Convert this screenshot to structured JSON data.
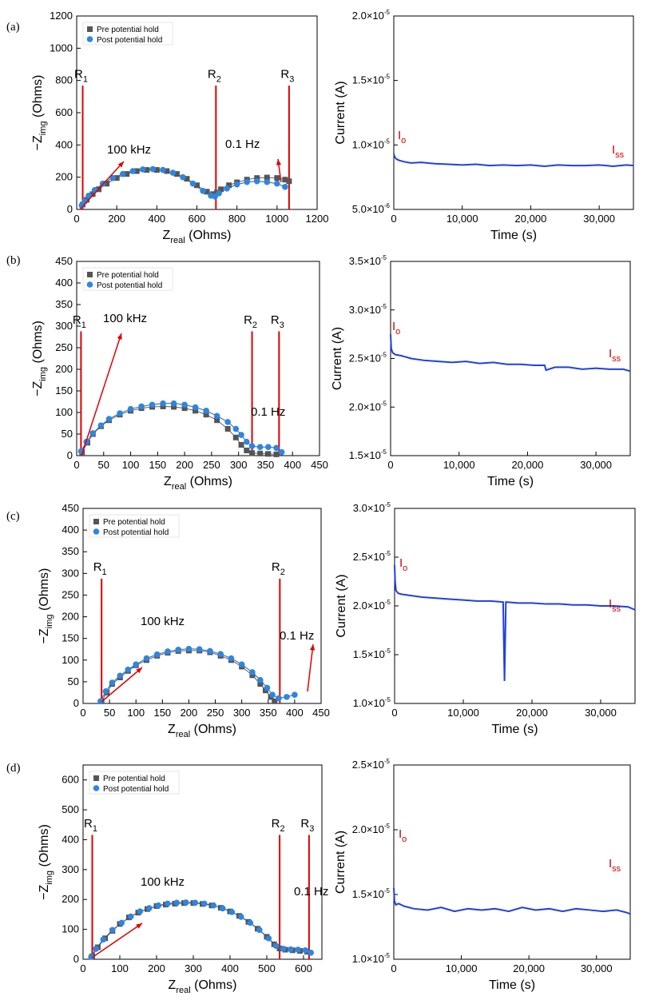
{
  "chart_data": [
    {
      "type": "scatter",
      "panel": "(a)",
      "xlabel": "Z",
      "xlabel_sub": "real",
      "xlabel_suffix": " (Ohms)",
      "ylabel_prefix": "−Z",
      "ylabel_sub": "img",
      "ylabel_suffix": " (Ohms)",
      "xlim": [
        0,
        1200
      ],
      "ylim": [
        0,
        1200
      ],
      "xticks": [
        0,
        200,
        400,
        600,
        800,
        1000,
        1200
      ],
      "yticks": [
        0,
        200,
        400,
        600,
        800,
        1000,
        1200
      ],
      "legend": [
        "Pre potential hold",
        "Post potential hold"
      ],
      "series": [
        {
          "name": "Pre potential hold",
          "color": "#555555",
          "marker": "square",
          "x": [
            30,
            50,
            80,
            110,
            150,
            200,
            250,
            300,
            350,
            400,
            450,
            500,
            550,
            600,
            650,
            680,
            700,
            720,
            760,
            800,
            850,
            900,
            950,
            1000,
            1040,
            1060
          ],
          "y": [
            30,
            60,
            95,
            125,
            160,
            195,
            220,
            238,
            245,
            245,
            238,
            220,
            190,
            150,
            110,
            95,
            105,
            125,
            150,
            168,
            185,
            195,
            198,
            195,
            185,
            175
          ]
        },
        {
          "name": "Post potential hold",
          "color": "#2e86de",
          "marker": "circle",
          "x": [
            25,
            40,
            60,
            90,
            130,
            180,
            230,
            280,
            330,
            380,
            430,
            480,
            530,
            580,
            630,
            670,
            690,
            710,
            750,
            800,
            850,
            900,
            950,
            1000,
            1040
          ],
          "y": [
            25,
            50,
            85,
            120,
            160,
            195,
            220,
            238,
            248,
            250,
            245,
            228,
            200,
            160,
            115,
            85,
            80,
            100,
            130,
            155,
            170,
            175,
            170,
            160,
            140
          ]
        }
      ],
      "vlines": [
        {
          "label": "R",
          "sub": "1",
          "x": 30
        },
        {
          "label": "R",
          "sub": "2",
          "x": 695
        },
        {
          "label": "R",
          "sub": "3",
          "x": 1060
        }
      ],
      "annotations": [
        {
          "text": "100 kHz"
        },
        {
          "text": "0.1 Hz"
        }
      ]
    },
    {
      "type": "line",
      "panel": "(a)",
      "xlabel": "Time (s)",
      "ylabel": "Current (A)",
      "xlim": [
        0,
        35000
      ],
      "ylim": [
        5e-06,
        2e-05
      ],
      "xticks": [
        0,
        10000,
        20000,
        30000
      ],
      "xtick_labels": [
        "0",
        "10,000",
        "20,000",
        "30,000"
      ],
      "ytick_mant": [
        "5.0",
        "1.0",
        "1.5",
        "2.0"
      ],
      "ytick_exp": [
        "-6",
        "-5",
        "-5",
        "-5"
      ],
      "ytick_values": [
        5e-06,
        1e-05,
        1.5e-05,
        2e-05
      ],
      "color": "#1f3fe6",
      "x": [
        0,
        150,
        400,
        800,
        1500,
        2500,
        4000,
        6000,
        8000,
        10000,
        12000,
        14000,
        16000,
        18000,
        20000,
        22000,
        24000,
        26000,
        28000,
        30000,
        32000,
        34000,
        35000
      ],
      "y": [
        9.3e-06,
        9.05e-06,
        8.9e-06,
        8.8e-06,
        8.7e-06,
        8.6e-06,
        8.65e-06,
        8.55e-06,
        8.5e-06,
        8.45e-06,
        8.5e-06,
        8.4e-06,
        8.45e-06,
        8.4e-06,
        8.45e-06,
        8.35e-06,
        8.45e-06,
        8.4e-06,
        8.4e-06,
        8.45e-06,
        8.35e-06,
        8.45e-06,
        8.4e-06
      ],
      "labels": [
        {
          "text": "I",
          "sub": "o"
        },
        {
          "text": "I",
          "sub": "ss"
        }
      ]
    },
    {
      "type": "scatter",
      "panel": "(b)",
      "xlabel": "Z",
      "xlabel_sub": "real",
      "xlabel_suffix": " (Ohms)",
      "ylabel_prefix": "−Z",
      "ylabel_sub": "img",
      "ylabel_suffix": " (Ohms)",
      "xlim": [
        0,
        450
      ],
      "ylim": [
        0,
        450
      ],
      "xticks": [
        0,
        50,
        100,
        150,
        200,
        250,
        300,
        350,
        400,
        450
      ],
      "yticks": [
        0,
        50,
        100,
        150,
        200,
        250,
        300,
        350,
        400,
        450
      ],
      "legend": [
        "Pre potential hold",
        "Post potential hold"
      ],
      "series": [
        {
          "name": "Pre potential hold",
          "color": "#555555",
          "marker": "square",
          "x": [
            10,
            20,
            30,
            45,
            60,
            80,
            100,
            120,
            140,
            160,
            180,
            200,
            220,
            240,
            260,
            280,
            295,
            305,
            315,
            325,
            340,
            355,
            370
          ],
          "y": [
            8,
            30,
            50,
            68,
            82,
            95,
            104,
            110,
            113,
            114,
            113,
            110,
            104,
            95,
            82,
            62,
            42,
            25,
            12,
            6,
            5,
            4,
            3
          ]
        },
        {
          "name": "Post potential hold",
          "color": "#2e86de",
          "marker": "circle",
          "x": [
            8,
            18,
            30,
            45,
            60,
            80,
            100,
            120,
            140,
            160,
            180,
            200,
            220,
            240,
            260,
            280,
            295,
            305,
            315,
            325,
            340,
            355,
            370,
            380
          ],
          "y": [
            10,
            32,
            52,
            70,
            85,
            98,
            108,
            114,
            118,
            121,
            121,
            118,
            112,
            104,
            92,
            78,
            62,
            48,
            32,
            22,
            20,
            20,
            18,
            8
          ]
        }
      ],
      "vlines": [
        {
          "label": "R",
          "sub": "1",
          "x": 8
        },
        {
          "label": "R",
          "sub": "2",
          "x": 325
        },
        {
          "label": "R",
          "sub": "3",
          "x": 375
        }
      ],
      "annotations": [
        {
          "text": "100 kHz"
        },
        {
          "text": "0.1 Hz"
        }
      ]
    },
    {
      "type": "line",
      "panel": "(b)",
      "xlabel": "Time (s)",
      "ylabel": "Current (A)",
      "xlim": [
        0,
        35000
      ],
      "ylim": [
        1.5e-05,
        3.5e-05
      ],
      "xticks": [
        0,
        10000,
        20000,
        30000
      ],
      "xtick_labels": [
        "0",
        "10,000",
        "20,000",
        "30,000"
      ],
      "ytick_mant": [
        "1.5",
        "2.0",
        "2.5",
        "3.0",
        "3.5"
      ],
      "ytick_exp": [
        "-5",
        "-5",
        "-5",
        "-5",
        "-5"
      ],
      "ytick_values": [
        1.5e-05,
        2e-05,
        2.5e-05,
        3e-05,
        3.5e-05
      ],
      "color": "#1f3fe6",
      "x": [
        0,
        100,
        300,
        700,
        1500,
        3000,
        5000,
        7000,
        9000,
        11000,
        13000,
        15000,
        17000,
        19000,
        21000,
        22500,
        22700,
        24000,
        26000,
        28000,
        30000,
        32000,
        34000,
        35000
      ],
      "y": [
        2.75e-05,
        2.6e-05,
        2.56e-05,
        2.54e-05,
        2.53e-05,
        2.5e-05,
        2.48e-05,
        2.47e-05,
        2.46e-05,
        2.47e-05,
        2.45e-05,
        2.46e-05,
        2.44e-05,
        2.44e-05,
        2.43e-05,
        2.43e-05,
        2.38e-05,
        2.41e-05,
        2.41e-05,
        2.39e-05,
        2.4e-05,
        2.39e-05,
        2.39e-05,
        2.37e-05
      ],
      "labels": [
        {
          "text": "I",
          "sub": "o"
        },
        {
          "text": "I",
          "sub": "ss"
        }
      ]
    },
    {
      "type": "scatter",
      "panel": "(c)",
      "xlabel": "Z",
      "xlabel_sub": "real",
      "xlabel_suffix": " (Ohms)",
      "ylabel_prefix": "−Z",
      "ylabel_sub": "img",
      "ylabel_suffix": " (Ohms)",
      "xlim": [
        0,
        450
      ],
      "ylim": [
        0,
        450
      ],
      "xticks": [
        0,
        50,
        100,
        150,
        200,
        250,
        300,
        350,
        400,
        450
      ],
      "yticks": [
        0,
        50,
        100,
        150,
        200,
        250,
        300,
        350,
        400,
        450
      ],
      "legend": [
        "Pre potential hold",
        "Post potential hold"
      ],
      "series": [
        {
          "name": "Pre potential hold",
          "color": "#555555",
          "marker": "square",
          "x": [
            35,
            45,
            55,
            70,
            85,
            100,
            120,
            140,
            160,
            180,
            200,
            220,
            240,
            260,
            280,
            300,
            320,
            335,
            345,
            355,
            362
          ],
          "y": [
            5,
            25,
            45,
            60,
            75,
            88,
            100,
            110,
            117,
            121,
            122,
            122,
            118,
            110,
            100,
            85,
            65,
            45,
            30,
            15,
            5
          ]
        },
        {
          "name": "Post potential hold",
          "color": "#2e86de",
          "marker": "circle",
          "x": [
            33,
            43,
            55,
            70,
            85,
            100,
            120,
            140,
            160,
            180,
            200,
            220,
            240,
            260,
            280,
            300,
            320,
            335,
            348,
            358,
            370,
            385,
            400
          ],
          "y": [
            5,
            28,
            48,
            64,
            78,
            90,
            104,
            113,
            120,
            124,
            126,
            125,
            121,
            114,
            104,
            90,
            72,
            54,
            36,
            20,
            12,
            15,
            20
          ]
        }
      ],
      "vlines": [
        {
          "label": "R",
          "sub": "1",
          "x": 35
        },
        {
          "label": "R",
          "sub": "2",
          "x": 372
        }
      ],
      "annotations": [
        {
          "text": "100 kHz"
        },
        {
          "text": "0.1 Hz"
        }
      ]
    },
    {
      "type": "line",
      "panel": "(c)",
      "xlabel": "Time (s)",
      "ylabel": "Current (A)",
      "xlim": [
        0,
        35000
      ],
      "ylim": [
        1e-05,
        3e-05
      ],
      "xticks": [
        0,
        10000,
        20000,
        30000
      ],
      "xtick_labels": [
        "0",
        "10,000",
        "20,000",
        "30,000"
      ],
      "ytick_mant": [
        "1.0",
        "1.5",
        "2.0",
        "2.5",
        "3.0"
      ],
      "ytick_exp": [
        "-5",
        "-5",
        "-5",
        "-5",
        "-5"
      ],
      "ytick_values": [
        1e-05,
        1.5e-05,
        2e-05,
        2.5e-05,
        3e-05
      ],
      "color": "#1f3fe6",
      "x": [
        0,
        80,
        200,
        500,
        1000,
        2000,
        4000,
        6000,
        8000,
        10000,
        12000,
        14000,
        15800,
        16000,
        16200,
        18000,
        20000,
        22000,
        24000,
        26000,
        28000,
        30000,
        32000,
        34000,
        35000
      ],
      "y": [
        2.42e-05,
        2.25e-05,
        2.16e-05,
        2.13e-05,
        2.12e-05,
        2.11e-05,
        2.09e-05,
        2.08e-05,
        2.07e-05,
        2.06e-05,
        2.05e-05,
        2.05e-05,
        2.04e-05,
        1.23e-05,
        2.04e-05,
        2.03e-05,
        2.03e-05,
        2.02e-05,
        2.02e-05,
        2.01e-05,
        2.01e-05,
        2e-05,
        2e-05,
        1.99e-05,
        1.96e-05
      ],
      "labels": [
        {
          "text": "I",
          "sub": "o"
        },
        {
          "text": "I",
          "sub": "ss"
        }
      ]
    },
    {
      "type": "scatter",
      "panel": "(d)",
      "xlabel": "Z",
      "xlabel_sub": "real",
      "xlabel_suffix": " (Ohms)",
      "ylabel_prefix": "−Z",
      "ylabel_sub": "img",
      "ylabel_suffix": " (Ohms)",
      "xlim": [
        0,
        650
      ],
      "ylim": [
        0,
        650
      ],
      "xticks": [
        0,
        100,
        200,
        300,
        400,
        500,
        600
      ],
      "yticks": [
        0,
        100,
        200,
        300,
        400,
        500,
        600
      ],
      "legend": [
        "Pre potential hold",
        "Post potential hold"
      ],
      "series": [
        {
          "name": "Pre potential hold",
          "color": "#555555",
          "marker": "square",
          "x": [
            25,
            40,
            60,
            80,
            100,
            125,
            150,
            175,
            200,
            225,
            250,
            275,
            300,
            325,
            350,
            375,
            400,
            425,
            450,
            475,
            500,
            520,
            535,
            550,
            570,
            590,
            610
          ],
          "y": [
            10,
            40,
            70,
            95,
            118,
            140,
            156,
            168,
            178,
            183,
            186,
            188,
            188,
            185,
            180,
            172,
            160,
            145,
            125,
            102,
            75,
            50,
            36,
            32,
            30,
            28,
            25
          ]
        },
        {
          "name": "Post potential hold",
          "color": "#2e86de",
          "marker": "circle",
          "x": [
            22,
            35,
            55,
            80,
            105,
            130,
            155,
            180,
            205,
            230,
            255,
            280,
            305,
            330,
            355,
            380,
            405,
            430,
            455,
            480,
            505,
            525,
            545,
            565,
            585,
            605,
            620
          ],
          "y": [
            8,
            35,
            66,
            98,
            122,
            143,
            160,
            171,
            180,
            186,
            189,
            190,
            189,
            186,
            180,
            170,
            158,
            142,
            122,
            98,
            70,
            45,
            35,
            33,
            32,
            30,
            22
          ]
        }
      ],
      "vlines": [
        {
          "label": "R",
          "sub": "1",
          "x": 25
        },
        {
          "label": "R",
          "sub": "2",
          "x": 535
        },
        {
          "label": "R",
          "sub": "3",
          "x": 615
        }
      ],
      "annotations": [
        {
          "text": "100 kHz"
        },
        {
          "text": "0.1 Hz"
        }
      ]
    },
    {
      "type": "line",
      "panel": "(d)",
      "xlabel": "Time (s)",
      "ylabel": "Current (A)",
      "xlim": [
        0,
        35000
      ],
      "ylim": [
        1e-05,
        2.5e-05
      ],
      "xticks": [
        0,
        10000,
        20000,
        30000
      ],
      "xtick_labels": [
        "0",
        "10,000",
        "20,000",
        "30,000"
      ],
      "ytick_mant": [
        "1.0",
        "1.5",
        "2.0",
        "2.5"
      ],
      "ytick_exp": [
        "-5",
        "-5",
        "-5",
        "-5"
      ],
      "ytick_values": [
        1e-05,
        1.5e-05,
        2e-05,
        2.5e-05
      ],
      "color": "#1f3fe6",
      "x": [
        0,
        100,
        300,
        700,
        1500,
        3000,
        5000,
        7000,
        9000,
        11000,
        13000,
        15000,
        17000,
        19000,
        21000,
        23000,
        25000,
        27000,
        29000,
        31000,
        33000,
        34500,
        35000
      ],
      "y": [
        1.55e-05,
        1.45e-05,
        1.42e-05,
        1.43e-05,
        1.41e-05,
        1.39e-05,
        1.38e-05,
        1.4e-05,
        1.37e-05,
        1.39e-05,
        1.38e-05,
        1.39e-05,
        1.37e-05,
        1.4e-05,
        1.38e-05,
        1.39e-05,
        1.37e-05,
        1.39e-05,
        1.38e-05,
        1.37e-05,
        1.38e-05,
        1.36e-05,
        1.35e-05
      ],
      "labels": [
        {
          "text": "I",
          "sub": "o"
        },
        {
          "text": "I",
          "sub": "ss"
        }
      ]
    }
  ]
}
